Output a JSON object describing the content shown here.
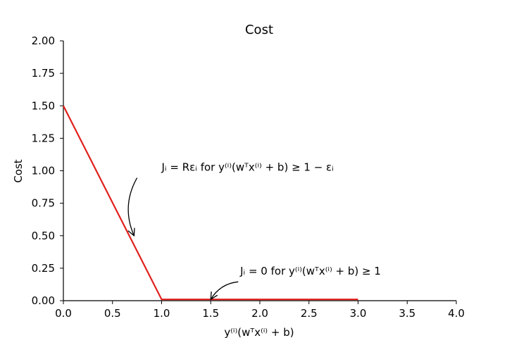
{
  "chart_data": {
    "type": "line",
    "title": "Cost",
    "xlabel": "y⁽ⁱ⁾(wᵀx⁽ⁱ⁾ + b)",
    "ylabel": "Cost",
    "xlim": [
      0.0,
      4.0
    ],
    "ylim": [
      0.0,
      2.0
    ],
    "x_ticks": [
      "0.0",
      "0.5",
      "1.0",
      "1.5",
      "2.0",
      "2.5",
      "3.0",
      "3.5",
      "4.0"
    ],
    "y_ticks": [
      "0.00",
      "0.25",
      "0.50",
      "0.75",
      "1.00",
      "1.25",
      "1.50",
      "1.75",
      "2.00"
    ],
    "grid": false,
    "series": [
      {
        "color": "#e0201b",
        "x": [
          0.0,
          1.0,
          3.0
        ],
        "y": [
          1.5,
          0.01,
          0.01
        ]
      }
    ],
    "annotations": [
      {
        "text": "Jᵢ = Rεᵢ for y⁽ⁱ⁾(wᵀx⁽ⁱ⁾ + b) ≥ 1 − εᵢ",
        "text_at": [
          1.0,
          1.0
        ],
        "arrow_from": [
          0.75,
          0.945
        ],
        "arrow_to": [
          0.72,
          0.5
        ]
      },
      {
        "text": "Jᵢ = 0 for y⁽ⁱ⁾(wᵀx⁽ⁱ⁾ + b) ≥ 1",
        "text_at": [
          1.8,
          0.2
        ],
        "arrow_from": [
          1.78,
          0.145
        ],
        "arrow_to": [
          1.5,
          0.01
        ]
      }
    ]
  }
}
